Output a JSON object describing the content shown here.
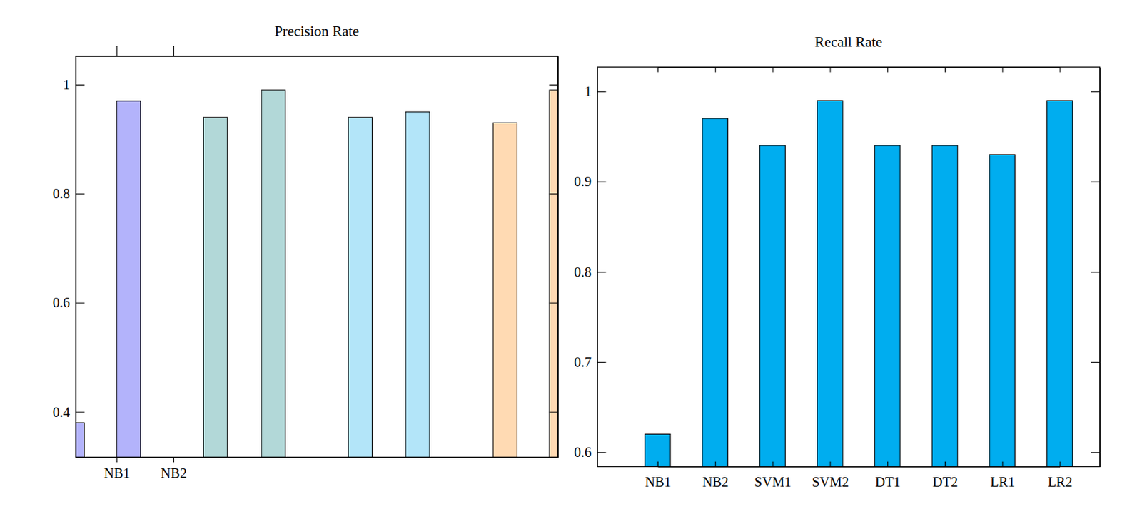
{
  "chart_data": [
    {
      "type": "bar",
      "title": "Precision Rate",
      "x": [
        0.22,
        1.21,
        2.74,
        3.76,
        5.29,
        6.3,
        7.84,
        8.83
      ],
      "values": [
        0.38,
        0.97,
        0.94,
        0.99,
        0.94,
        0.95,
        0.93,
        0.99
      ],
      "colors": [
        "#b3b3fb",
        "#b3b3fb",
        "#b2d8d8",
        "#b2d8d8",
        "#b3e5f9",
        "#b3e5f9",
        "#ffdab3",
        "#ffdab3"
      ],
      "xlim": [
        0.28,
        8.77
      ],
      "xticks": [
        {
          "value": 1,
          "label": "NB1"
        },
        {
          "value": 2,
          "label": "NB2"
        }
      ],
      "ylim": [
        0.317,
        1.052
      ],
      "yticks": [
        0.4,
        0.6,
        0.8,
        1
      ]
    },
    {
      "type": "bar",
      "title": "Recall Rate",
      "categories": [
        "NB1",
        "NB2",
        "SVM1",
        "SVM2",
        "DT1",
        "DT2",
        "LR1",
        "LR2"
      ],
      "values": [
        0.62,
        0.97,
        0.94,
        0.99,
        0.94,
        0.94,
        0.93,
        0.99
      ],
      "color": "#00adef",
      "ylim": [
        0.584,
        1.027
      ],
      "yticks": [
        0.6,
        0.7,
        0.8,
        0.9,
        1
      ]
    }
  ]
}
